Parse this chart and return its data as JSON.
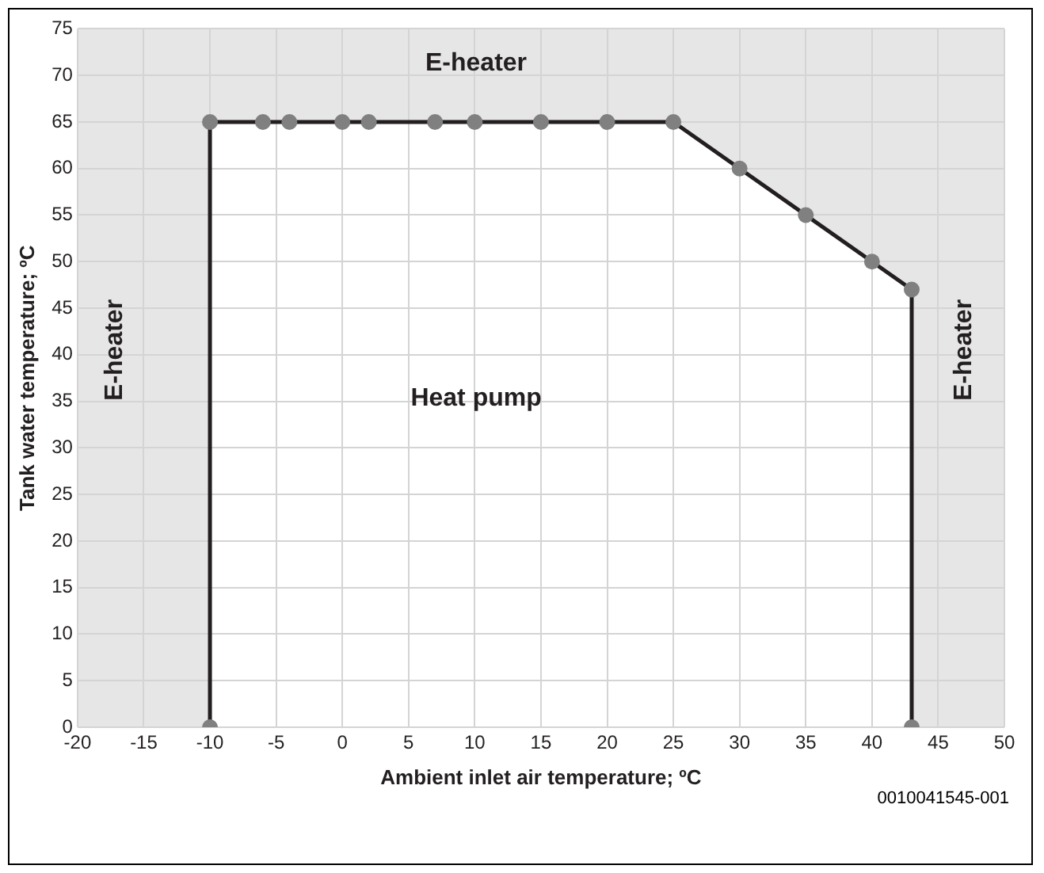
{
  "chart_data": {
    "type": "area",
    "xlabel": "Ambient inlet air temperature; ºC",
    "ylabel": "Tank water temperature; ºC",
    "x": [
      -10,
      -10,
      -6,
      -4,
      0,
      2,
      7,
      10,
      15,
      20,
      25,
      30,
      35,
      40,
      43,
      43
    ],
    "series": [
      {
        "color": "#231f20",
        "values": [
          0,
          65,
          65,
          65,
          65,
          65,
          65,
          65,
          65,
          65,
          65,
          60,
          55,
          50,
          47,
          0
        ]
      }
    ],
    "xlim": [
      -20,
      50
    ],
    "xticks": [
      -20,
      -15,
      -10,
      -5,
      0,
      5,
      10,
      15,
      20,
      25,
      30,
      35,
      40,
      45,
      50
    ],
    "ylim": [
      0,
      75
    ],
    "yticks": [
      0,
      5,
      10,
      15,
      20,
      25,
      30,
      35,
      40,
      45,
      50,
      55,
      60,
      65,
      70,
      75
    ],
    "grid": true,
    "marker": "circle",
    "legend": false,
    "annotations": [
      "E-heater",
      "E-heater",
      "Heat pump",
      "E-heater",
      "0010041545-001"
    ]
  }
}
